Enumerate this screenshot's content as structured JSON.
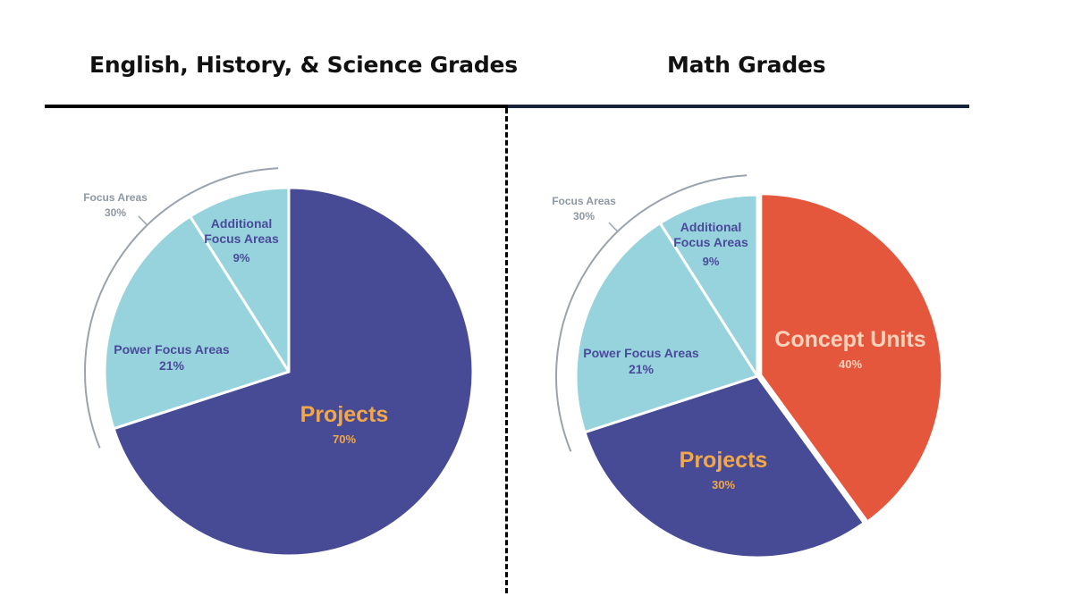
{
  "headers": {
    "left_title": "English, History, & Science Grades",
    "right_title": "Math Grades"
  },
  "colors": {
    "projects": "#474b95",
    "focus": "#97d3dd",
    "concept": "#e5573d",
    "projects_label": "#f2a74b",
    "concept_label": "#fad2bb",
    "focus_label": "#4a4a9a",
    "bracket": "#9aa3ad",
    "bracket_label": "#8e98a3"
  },
  "chart_data": [
    {
      "type": "pie",
      "title": "English, History, & Science Grades",
      "slices": [
        {
          "name": "Projects",
          "value": 70,
          "label": "70%"
        },
        {
          "name": "Power Focus Areas",
          "value": 21,
          "label": "21%"
        },
        {
          "name": "Additional Focus Areas",
          "value": 9,
          "label": "9%"
        }
      ],
      "group_bracket": {
        "name": "Focus Areas",
        "value": 30,
        "label": "30%"
      }
    },
    {
      "type": "pie",
      "title": "Math Grades",
      "slices": [
        {
          "name": "Concept Units",
          "value": 40,
          "label": "40%"
        },
        {
          "name": "Projects",
          "value": 30,
          "label": "30%"
        },
        {
          "name": "Power Focus Areas",
          "value": 21,
          "label": "21%"
        },
        {
          "name": "Additional Focus Areas",
          "value": 9,
          "label": "9%"
        }
      ],
      "group_bracket": {
        "name": "Focus Areas",
        "value": 30,
        "label": "30%"
      }
    }
  ]
}
